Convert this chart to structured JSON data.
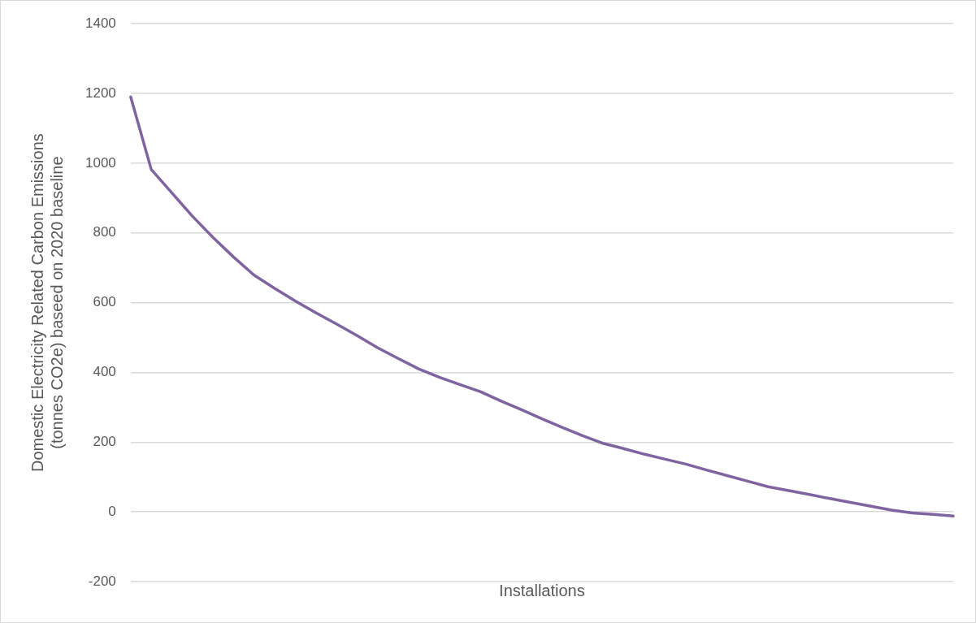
{
  "chart_data": {
    "type": "line",
    "xlabel": "Installations",
    "ylabel": "Domestic Electricity Related Carbon Emissions (tonnes CO2e) baseed on 2020 baseline",
    "categories": [
      null,
      null,
      null,
      null,
      null,
      null,
      null,
      null,
      null,
      null,
      null,
      null,
      null,
      null,
      null,
      null,
      null,
      null,
      null,
      null,
      null,
      null,
      null,
      null,
      null,
      null,
      null,
      null,
      null,
      null,
      null,
      null,
      null,
      null,
      null,
      null,
      null,
      null,
      null,
      null,
      null
    ],
    "series": [
      {
        "color": "#8064a2",
        "values": [
          1190,
          982,
          915,
          848,
          787,
          731,
          679,
          641,
          605,
          571,
          539,
          506,
          471,
          440,
          410,
          386,
          365,
          345,
          318,
          293,
          267,
          242,
          218,
          196,
          181,
          165,
          151,
          137,
          120,
          104,
          88,
          72,
          61,
          50,
          38,
          27,
          16,
          5,
          -3,
          -7,
          -12
        ]
      }
    ],
    "ylim": [
      -200,
      1400
    ],
    "yticks": [
      -200,
      0,
      200,
      400,
      600,
      800,
      1000,
      1200,
      1400
    ],
    "grid": "y",
    "tick_labels": "y",
    "marker": "none",
    "line_style": "solid",
    "legend": false
  }
}
